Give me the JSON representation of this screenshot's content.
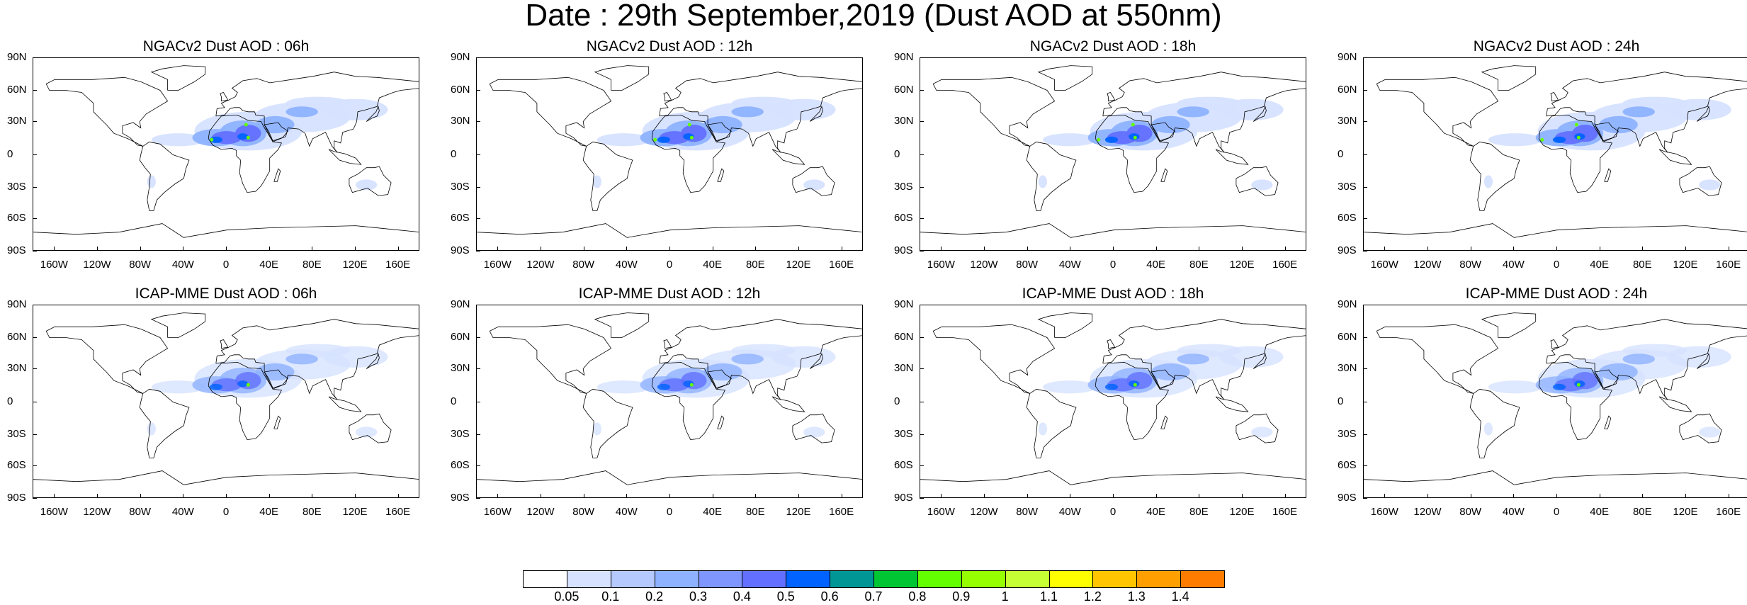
{
  "title": "Date : 29th September,2019 (Dust AOD at 550nm)",
  "panels": [
    {
      "title": "NGACv2 Dust AOD : 06h",
      "model": "NGACv2",
      "hour": "06h"
    },
    {
      "title": "NGACv2 Dust AOD : 12h",
      "model": "NGACv2",
      "hour": "12h"
    },
    {
      "title": "NGACv2 Dust AOD : 18h",
      "model": "NGACv2",
      "hour": "18h"
    },
    {
      "title": "NGACv2 Dust AOD : 24h",
      "model": "NGACv2",
      "hour": "24h"
    },
    {
      "title": "ICAP-MME Dust AOD : 06h",
      "model": "ICAP-MME",
      "hour": "06h"
    },
    {
      "title": "ICAP-MME Dust AOD : 12h",
      "model": "ICAP-MME",
      "hour": "12h"
    },
    {
      "title": "ICAP-MME Dust AOD : 18h",
      "model": "ICAP-MME",
      "hour": "18h"
    },
    {
      "title": "ICAP-MME Dust AOD : 24h",
      "model": "ICAP-MME",
      "hour": "24h"
    }
  ],
  "axes": {
    "lat_labels": [
      "90N",
      "60N",
      "30N",
      "0",
      "30S",
      "60S",
      "90S"
    ],
    "lon_labels": [
      "160W",
      "120W",
      "80W",
      "40W",
      "0",
      "40E",
      "80E",
      "120E",
      "160E"
    ]
  },
  "colorbar": {
    "labels": [
      "0.05",
      "0.1",
      "0.2",
      "0.3",
      "0.4",
      "0.5",
      "0.6",
      "0.7",
      "0.8",
      "0.9",
      "1",
      "1.1",
      "1.2",
      "1.3",
      "1.4"
    ],
    "colors": [
      "#ffffff",
      "#d6e2ff",
      "#b5c9ff",
      "#8eb2ff",
      "#7f96ff",
      "#6370ff",
      "#0063ff",
      "#009696",
      "#00c633",
      "#63ff00",
      "#96ff00",
      "#c6ff33",
      "#ffff00",
      "#ffc600",
      "#ffa000",
      "#ff7c00",
      "#ff1900"
    ]
  },
  "colors": {
    "dust_low": "#d6e2ff",
    "dust_mid": "#8eb2ff",
    "dust_high": "#6370ff",
    "dust_core": "#0063ff",
    "peak": "#63ff00",
    "coast": "#000000"
  }
}
